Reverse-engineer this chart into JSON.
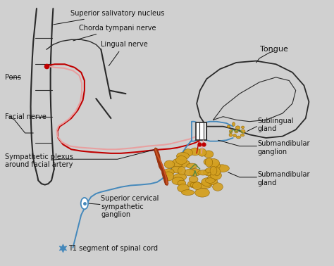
{
  "background_color": "#d0d0d0",
  "labels": {
    "superior_salivatory_nucleus": "Superior salivatory nucleus",
    "chorda_tympani": "Chorda tympani nerve",
    "lingual_nerve": "Lingual nerve",
    "pons": "Pons",
    "facial_nerve": "Facial nerve",
    "tongue": "Tongue",
    "sublingual_gland": "Sublingual\ngland",
    "submandibular_ganglion": "Submandibular\nganglion",
    "submandibular_gland": "Submandibular\ngland",
    "sympathetic_plexus": "Sympathetic plexus\naround facial artery",
    "superior_cervical": "Superior cervical\nsympathetic\nganglion",
    "t1_segment": "T1 segment of spinal cord"
  },
  "colors": {
    "background": "#d0d0d0",
    "nerve_red": "#c00000",
    "nerve_blue": "#4488bb",
    "nerve_pink": "#e8a0a0",
    "outline_black": "#2a2a2a",
    "gland_yellow": "#d4a020",
    "artery_brown": "#993311",
    "text_black": "#111111",
    "star_blue": "#4488bb"
  },
  "font_size": 7.0
}
